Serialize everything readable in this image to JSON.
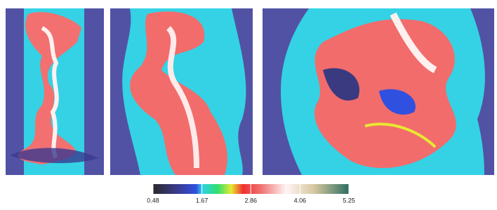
{
  "colorbar": {
    "range": [
      0.48,
      5.25
    ],
    "ticks": [
      0.48,
      1.67,
      2.86,
      4.06,
      5.25
    ]
  }
}
